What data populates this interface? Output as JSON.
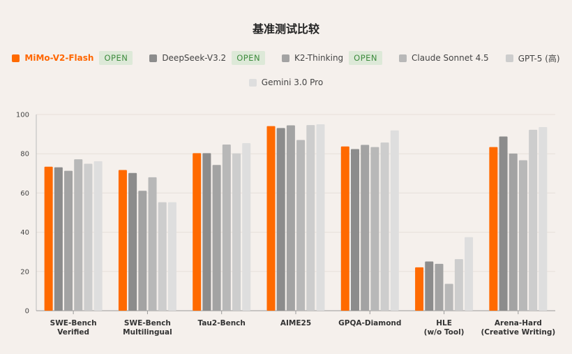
{
  "chart_data": {
    "type": "bar",
    "title": "基准测试比较",
    "categories": [
      [
        "SWE-Bench",
        "Verified"
      ],
      [
        "SWE-Bench",
        "Multilingual"
      ],
      [
        "Tau2-Bench"
      ],
      [
        "AIME25"
      ],
      [
        "GPQA-Diamond"
      ],
      [
        "HLE",
        "(w/o Tool)"
      ],
      [
        "Arena-Hard",
        "(Creative Writing)"
      ]
    ],
    "series": [
      {
        "name": "MiMo-V2-Flash",
        "badge": "OPEN",
        "color": "#ff6a00",
        "values": [
          73.4,
          71.7,
          80.3,
          94.1,
          83.7,
          22.1,
          83.4
        ]
      },
      {
        "name": "DeepSeek-V3.2",
        "badge": "OPEN",
        "color": "#8c8c8c",
        "values": [
          73.1,
          70.2,
          80.3,
          93.1,
          82.4,
          25.1,
          88.8
        ]
      },
      {
        "name": "K2-Thinking",
        "badge": "OPEN",
        "color": "#a3a3a3",
        "values": [
          71.3,
          61.1,
          74.3,
          94.5,
          84.5,
          23.9,
          80.1
        ]
      },
      {
        "name": "Claude Sonnet 4.5",
        "badge": "",
        "color": "#b8b8b8",
        "values": [
          77.2,
          68.0,
          84.7,
          87.0,
          83.4,
          13.7,
          76.7
        ]
      },
      {
        "name": "GPT-5 (高)",
        "badge": "",
        "color": "#cdcdcd",
        "values": [
          74.9,
          55.3,
          80.2,
          94.6,
          85.7,
          26.3,
          92.2
        ]
      },
      {
        "name": "Gemini 3.0 Pro",
        "badge": "",
        "color": "#dedede",
        "values": [
          76.2,
          55.3,
          85.4,
          95.0,
          91.9,
          37.5,
          93.6
        ]
      }
    ],
    "ylim": [
      0,
      100
    ],
    "yticks": [
      0,
      20,
      40,
      60,
      80,
      100
    ],
    "xlabel": "",
    "ylabel": "",
    "grid": true,
    "legend_position": "top"
  }
}
